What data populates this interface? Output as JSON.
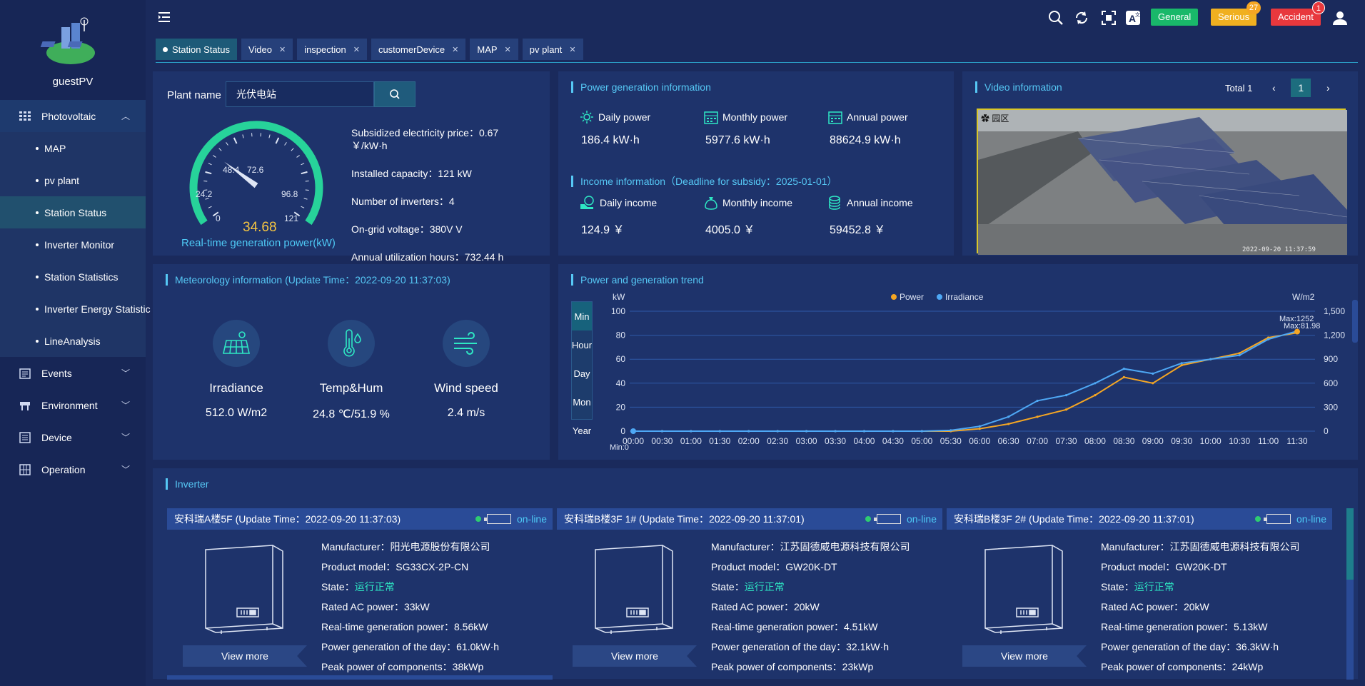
{
  "sidebar": {
    "user_name": "guestPV",
    "groups": [
      {
        "label": "Photovoltaic",
        "icon": "grid-icon"
      },
      {
        "label": "Events",
        "icon": "events-icon"
      },
      {
        "label": "Environment",
        "icon": "environment-icon"
      },
      {
        "label": "Device",
        "icon": "device-icon"
      },
      {
        "label": "Operation",
        "icon": "operation-icon"
      }
    ],
    "sub_items": [
      "MAP",
      "pv plant",
      "Station Status",
      "Inverter Monitor",
      "Station Statistics",
      "Inverter Energy Statistic",
      "LineAnalysis"
    ],
    "active_item": "Station Status"
  },
  "topbar": {
    "alarms": [
      {
        "label": "General",
        "color": "#19b86a",
        "count": ""
      },
      {
        "label": "Serious",
        "color": "#f0b020",
        "count": "27"
      },
      {
        "label": "Accident",
        "color": "#e8383d",
        "count": "1"
      }
    ]
  },
  "tabs": [
    "Station Status",
    "Video",
    "inspection",
    "customerDevice",
    "MAP",
    "pv plant"
  ],
  "plant": {
    "label": "Plant name",
    "search_value": "光伏电站",
    "gauge": {
      "value": "34.68",
      "caption": "Real-time generation power(kW)",
      "ticks": [
        "0",
        "24.2",
        "48.4",
        "72.6",
        "96.8",
        "121"
      ],
      "max": 121,
      "current": 34.68
    },
    "info": [
      "Subsidized electricity price：0.67",
      "￥/kW·h",
      "Installed capacity：121 kW",
      "Number of inverters：4",
      "On-grid voltage：380V V",
      "Annual utilization hours：732.44 h"
    ]
  },
  "power_info": {
    "title": "Power generation information",
    "items": [
      {
        "label": "Daily power",
        "value": "186.4 kW·h"
      },
      {
        "label": "Monthly power",
        "value": "5977.6 kW·h"
      },
      {
        "label": "Annual power",
        "value": "88624.9 kW·h"
      }
    ],
    "income_title": "Income information（Deadline for subsidy：2025-01-01）",
    "income": [
      {
        "label": "Daily income",
        "value": "124.9 ￥"
      },
      {
        "label": "Monthly income",
        "value": "4005.0 ￥"
      },
      {
        "label": "Annual income",
        "value": "59452.8 ￥"
      }
    ]
  },
  "video": {
    "title": "Video information",
    "total": "Total 1",
    "page": "1",
    "cam_timestamp": "2022-09-20 11:37:59"
  },
  "meteo": {
    "title": "Meteorology information (Update Time：2022-09-20 11:37:03)",
    "items": [
      {
        "label": "Irradiance",
        "value": "512.0 W/m2"
      },
      {
        "label": "Temp&Hum",
        "value": "24.8 ℃/51.9 %"
      },
      {
        "label": "Wind speed",
        "value": "2.4 m/s"
      }
    ]
  },
  "trend": {
    "title": "Power and generation trend",
    "tabs": [
      "Min",
      "Hour",
      "Day",
      "Mon",
      "Year"
    ],
    "legend": [
      "Power",
      "Irradiance"
    ]
  },
  "chart_data": {
    "type": "line",
    "xlabel": "",
    "ylabel": "kW",
    "y2label": "W/m2",
    "x": [
      "00:00",
      "00:30",
      "01:00",
      "01:30",
      "02:00",
      "02:30",
      "03:00",
      "03:30",
      "04:00",
      "04:30",
      "05:00",
      "05:30",
      "06:00",
      "06:30",
      "07:00",
      "07:30",
      "08:00",
      "08:30",
      "09:00",
      "09:30",
      "10:00",
      "10:30",
      "11:00",
      "11:30"
    ],
    "ylim": [
      0,
      100
    ],
    "y2lim": [
      0,
      1500
    ],
    "y_ticks": [
      "0",
      "20",
      "40",
      "60",
      "80",
      "100"
    ],
    "y2_ticks": [
      "0",
      "300",
      "600",
      "900",
      "1,200",
      "1,500"
    ],
    "series": [
      {
        "name": "Power",
        "color": "#f5a623",
        "axis": "left",
        "values": [
          0,
          0,
          0,
          0,
          0,
          0,
          0,
          0,
          0,
          0,
          0,
          0,
          2,
          6,
          12,
          18,
          30,
          45,
          40,
          55,
          60,
          65,
          78,
          82
        ]
      },
      {
        "name": "Irradiance",
        "color": "#4ea8f5",
        "axis": "right",
        "values": [
          0,
          0,
          0,
          0,
          0,
          0,
          0,
          0,
          0,
          0,
          0,
          10,
          60,
          180,
          380,
          450,
          600,
          780,
          720,
          850,
          900,
          950,
          1150,
          1252
        ]
      }
    ],
    "annotations": [
      "Max:1252",
      "Max:81.98",
      "Min:0"
    ]
  },
  "inverter": {
    "title": "Inverter",
    "cards": [
      {
        "head": "安科瑞A楼5F (Update Time：2022-09-20 11:37:03)",
        "status": "on-line",
        "manufacturer": "Manufacturer：阳光电源股份有限公司",
        "model": "Product model：SG33CX-2P-CN",
        "state_label": "State：",
        "state": "运行正常",
        "rated": "Rated AC power：33kW",
        "realtime": "Real-time generation power：8.56kW",
        "day": "Power generation of the day：61.0kW·h",
        "peak": "Peak power of components：38kWp",
        "view": "View more"
      },
      {
        "head": "安科瑞B楼3F 1# (Update Time：2022-09-20 11:37:01)",
        "status": "on-line",
        "manufacturer": "Manufacturer：江苏固德威电源科技有限公司",
        "model": "Product model：GW20K-DT",
        "state_label": "State：",
        "state": "运行正常",
        "rated": "Rated AC power：20kW",
        "realtime": "Real-time generation power：4.51kW",
        "day": "Power generation of the day：32.1kW·h",
        "peak": "Peak power of components：23kWp",
        "view": "View more"
      },
      {
        "head": "安科瑞B楼3F 2# (Update Time：2022-09-20 11:37:01)",
        "status": "on-line",
        "manufacturer": "Manufacturer：江苏固德威电源科技有限公司",
        "model": "Product model：GW20K-DT",
        "state_label": "State：",
        "state": "运行正常",
        "rated": "Rated AC power：20kW",
        "realtime": "Real-time generation power：5.13kW",
        "day": "Power generation of the day：36.3kW·h",
        "peak": "Peak power of components：24kWp",
        "view": "View more"
      }
    ]
  }
}
